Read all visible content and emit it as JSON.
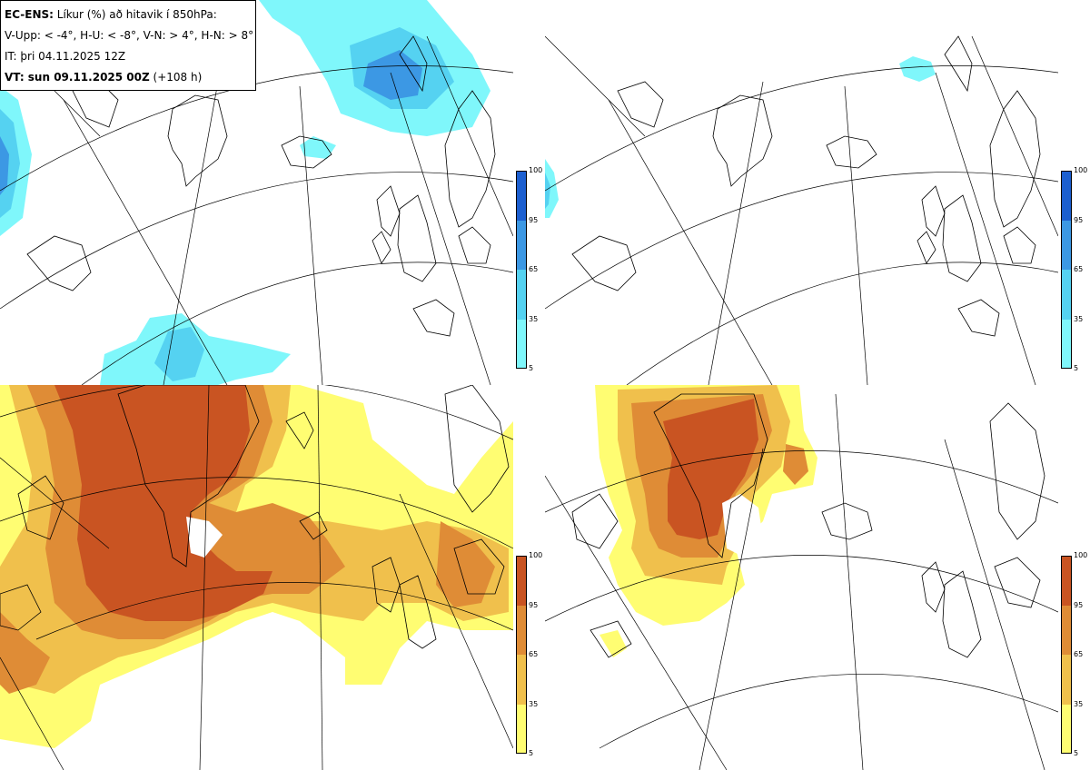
{
  "info": {
    "line1_bold": "EC-ENS:",
    "line1_text": " Líkur (%) að hitavik í 850hPa:",
    "line2": "V-Upp: < -4°, H-U: < -8°, V-N: > 4°, H-N: > 8°",
    "line3": "IT: þri 04.11.2025 12Z",
    "line4_bold": "VT: sun 09.11.2025 00Z",
    "line4_text": " (+108 h)"
  },
  "colorbars": {
    "cold": {
      "ticks": [
        "5",
        "35",
        "65",
        "95",
        "100"
      ],
      "colors": [
        "#7ff7fb",
        "#55d2f1",
        "#3c98e4",
        "#1c5fd0"
      ]
    },
    "warm": {
      "ticks": [
        "5",
        "35",
        "65",
        "95",
        "100"
      ],
      "colors": [
        "#fffd72",
        "#f0c04c",
        "#df8c36",
        "#c95422"
      ]
    }
  },
  "panels": [
    {
      "name": "panel-cold-4",
      "variable": "V-Upp",
      "threshold": "< -4°"
    },
    {
      "name": "panel-cold-8",
      "variable": "H-U",
      "threshold": "< -8°"
    },
    {
      "name": "panel-warm-4",
      "variable": "V-N",
      "threshold": "> 4°"
    },
    {
      "name": "panel-warm-8",
      "variable": "H-N",
      "threshold": "> 8°"
    }
  ]
}
